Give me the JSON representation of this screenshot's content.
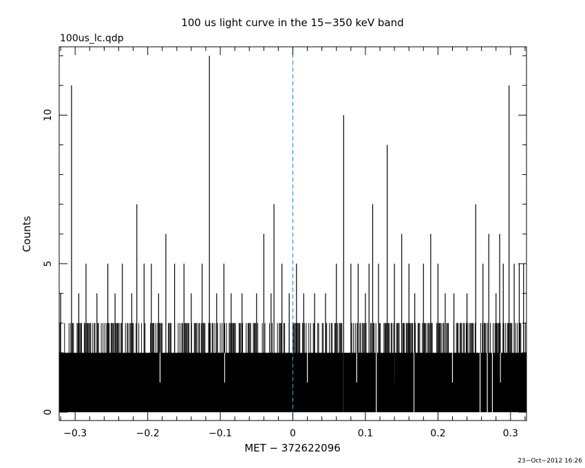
{
  "chart_data": {
    "type": "bar",
    "title": "100 us light curve in the 15−350 keV band",
    "file_label": "100us_lc.qdp",
    "xlabel": "MET − 372622096",
    "ylabel": "Counts",
    "timestamp": "23−Oct−2012 16:26",
    "xlim": [
      -0.322,
      0.322
    ],
    "ylim": [
      -0.28,
      12.3
    ],
    "x_ticks": [
      {
        "value": -0.3,
        "label": "−0.3"
      },
      {
        "value": -0.2,
        "label": "−0.2"
      },
      {
        "value": -0.1,
        "label": "−0.1"
      },
      {
        "value": 0,
        "label": "0"
      },
      {
        "value": 0.1,
        "label": "0.1"
      },
      {
        "value": 0.2,
        "label": "0.2"
      },
      {
        "value": 0.3,
        "label": "0.3"
      }
    ],
    "y_ticks": [
      {
        "value": 0,
        "label": "0"
      },
      {
        "value": 5,
        "label": "5"
      },
      {
        "value": 10,
        "label": "10"
      }
    ],
    "reference_line": {
      "x": 0,
      "style": "dashed",
      "color": "#1f9bd6"
    },
    "baseline_fill_level": 2,
    "low_spikes": [
      {
        "x": -0.183,
        "y": 1
      },
      {
        "x": -0.094,
        "y": 1
      },
      {
        "x": 0.02,
        "y": 1
      },
      {
        "x": 0.07,
        "y": 0
      },
      {
        "x": 0.088,
        "y": 1
      },
      {
        "x": 0.115,
        "y": 0
      },
      {
        "x": 0.14,
        "y": 1
      },
      {
        "x": 0.167,
        "y": 0
      },
      {
        "x": 0.22,
        "y": 1
      },
      {
        "x": 0.258,
        "y": 0
      },
      {
        "x": 0.268,
        "y": 0
      },
      {
        "x": 0.275,
        "y": 0
      },
      {
        "x": 0.286,
        "y": 1
      }
    ],
    "peaks": [
      {
        "x": -0.32,
        "y": 4
      },
      {
        "x": -0.305,
        "y": 11
      },
      {
        "x": -0.295,
        "y": 4
      },
      {
        "x": -0.285,
        "y": 5
      },
      {
        "x": -0.27,
        "y": 4
      },
      {
        "x": -0.255,
        "y": 5
      },
      {
        "x": -0.245,
        "y": 4
      },
      {
        "x": -0.235,
        "y": 5
      },
      {
        "x": -0.222,
        "y": 4
      },
      {
        "x": -0.215,
        "y": 7
      },
      {
        "x": -0.205,
        "y": 5
      },
      {
        "x": -0.195,
        "y": 5
      },
      {
        "x": -0.185,
        "y": 4
      },
      {
        "x": -0.175,
        "y": 6
      },
      {
        "x": -0.163,
        "y": 5
      },
      {
        "x": -0.15,
        "y": 5
      },
      {
        "x": -0.14,
        "y": 4
      },
      {
        "x": -0.125,
        "y": 5
      },
      {
        "x": -0.115,
        "y": 12
      },
      {
        "x": -0.105,
        "y": 4
      },
      {
        "x": -0.095,
        "y": 5
      },
      {
        "x": -0.085,
        "y": 4
      },
      {
        "x": -0.07,
        "y": 4
      },
      {
        "x": -0.05,
        "y": 4
      },
      {
        "x": -0.04,
        "y": 6
      },
      {
        "x": -0.03,
        "y": 4
      },
      {
        "x": -0.026,
        "y": 7
      },
      {
        "x": -0.015,
        "y": 5
      },
      {
        "x": -0.005,
        "y": 4
      },
      {
        "x": 0.005,
        "y": 5
      },
      {
        "x": 0.015,
        "y": 4
      },
      {
        "x": 0.03,
        "y": 4
      },
      {
        "x": 0.045,
        "y": 4
      },
      {
        "x": 0.06,
        "y": 5
      },
      {
        "x": 0.07,
        "y": 10
      },
      {
        "x": 0.08,
        "y": 5
      },
      {
        "x": 0.09,
        "y": 5
      },
      {
        "x": 0.1,
        "y": 4
      },
      {
        "x": 0.105,
        "y": 5
      },
      {
        "x": 0.11,
        "y": 7
      },
      {
        "x": 0.118,
        "y": 5
      },
      {
        "x": 0.13,
        "y": 9
      },
      {
        "x": 0.14,
        "y": 5
      },
      {
        "x": 0.15,
        "y": 6
      },
      {
        "x": 0.16,
        "y": 5
      },
      {
        "x": 0.168,
        "y": 4
      },
      {
        "x": 0.18,
        "y": 5
      },
      {
        "x": 0.19,
        "y": 6
      },
      {
        "x": 0.2,
        "y": 5
      },
      {
        "x": 0.21,
        "y": 4
      },
      {
        "x": 0.222,
        "y": 4
      },
      {
        "x": 0.24,
        "y": 4
      },
      {
        "x": 0.252,
        "y": 7
      },
      {
        "x": 0.262,
        "y": 5
      },
      {
        "x": 0.27,
        "y": 6
      },
      {
        "x": 0.28,
        "y": 4
      },
      {
        "x": 0.285,
        "y": 6
      },
      {
        "x": 0.29,
        "y": 5
      },
      {
        "x": 0.298,
        "y": 11
      },
      {
        "x": 0.305,
        "y": 5
      },
      {
        "x": 0.312,
        "y": 5
      },
      {
        "x": 0.318,
        "y": 5
      }
    ],
    "grid": false,
    "legend": "none"
  }
}
